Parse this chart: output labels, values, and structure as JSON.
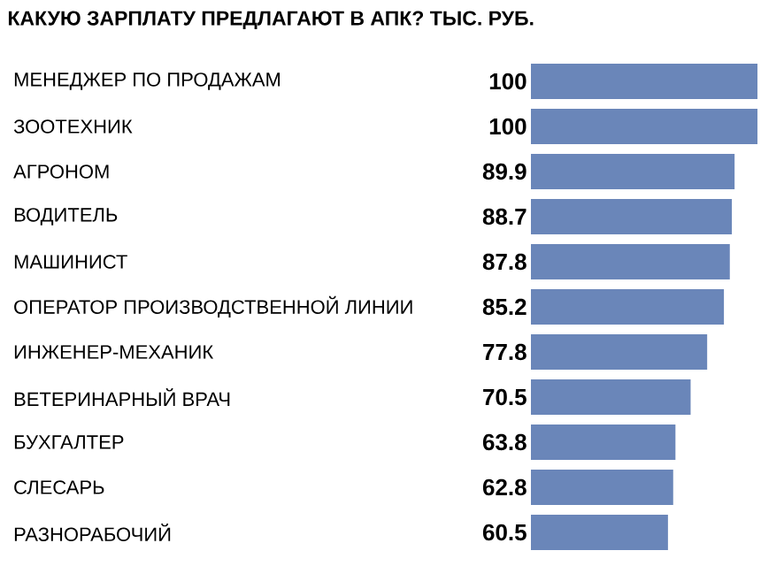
{
  "chart_data": {
    "type": "bar",
    "orientation": "horizontal",
    "title": "КАКУЮ ЗАРПЛАТУ ПРЕДЛАГАЮТ В АПК? ТЫС. РУБ.",
    "categories": [
      "МЕНЕДЖЕР ПО ПРОДАЖАМ",
      "ЗООТЕХНИК",
      "АГРОНОМ",
      "ВОДИТЕЛЬ",
      "МАШИНИСТ",
      "ОПЕРАТОР ПРОИЗВОДСТВЕННОЙ ЛИНИИ",
      "ИНЖЕНЕР-МЕХАНИК",
      "ВЕТЕРИНАРНЫЙ ВРАЧ",
      "БУХГАЛТЕР",
      "СЛЕСАРЬ",
      "РАЗНОРАБОЧИЙ"
    ],
    "values": [
      100,
      100,
      89.9,
      88.7,
      87.8,
      85.2,
      77.8,
      70.5,
      63.8,
      62.8,
      60.5
    ],
    "color": "#6a86b9",
    "xlim": [
      0,
      100
    ],
    "data_labels": true
  }
}
